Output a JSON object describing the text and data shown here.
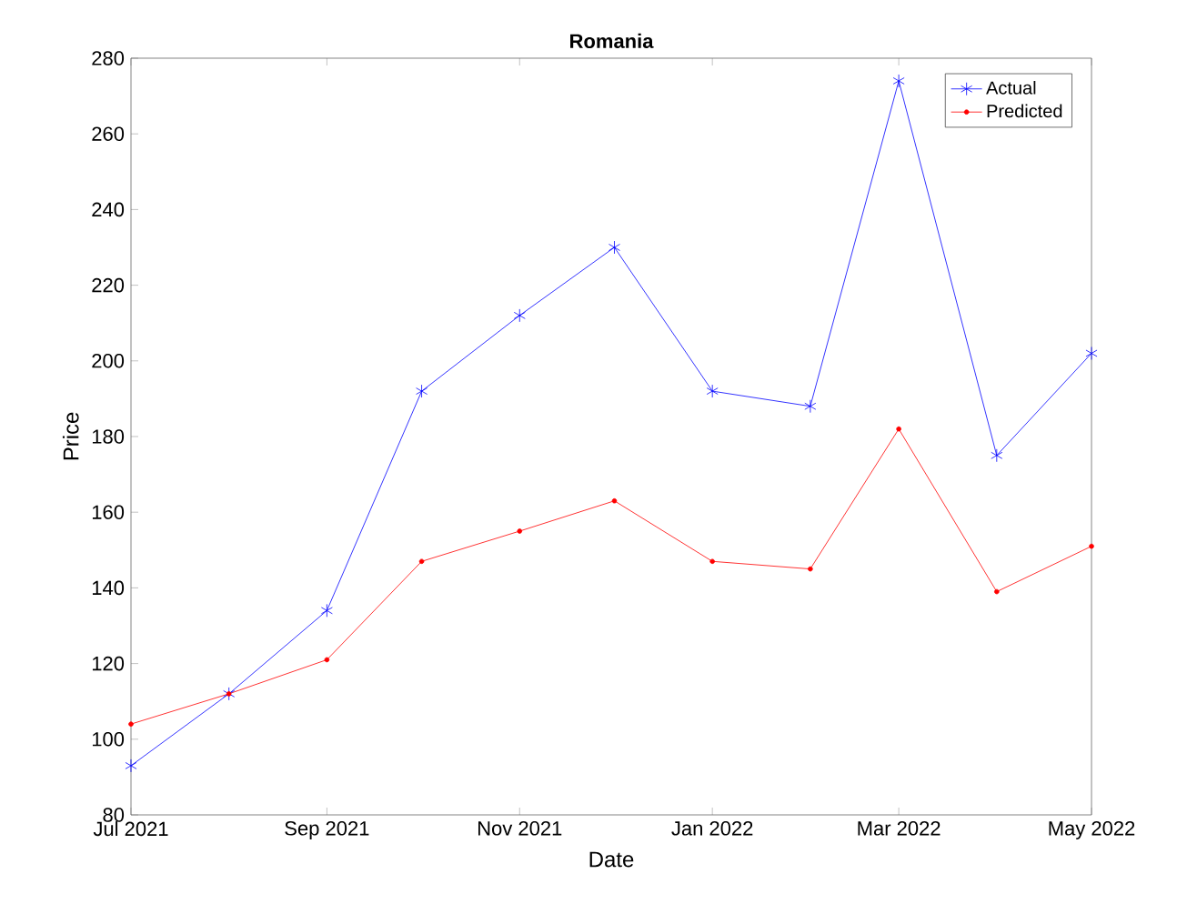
{
  "chart_data": {
    "type": "line",
    "title": "Romania",
    "xlabel": "Date",
    "ylabel": "Price",
    "x": [
      "2021-07",
      "2021-08",
      "2021-09",
      "2021-10",
      "2021-11",
      "2021-12",
      "2022-01",
      "2022-02",
      "2022-03",
      "2022-04",
      "2022-05"
    ],
    "series": [
      {
        "name": "Actual",
        "color": "#0000ff",
        "marker": "cross",
        "values": [
          93,
          112,
          134,
          192,
          212,
          230,
          192,
          188,
          274,
          175,
          202
        ]
      },
      {
        "name": "Predicted",
        "color": "#ff0000",
        "marker": "circle",
        "values": [
          104,
          112,
          121,
          147,
          155,
          163,
          147,
          145,
          182,
          139,
          151
        ]
      }
    ],
    "xlim": [
      "2021-07",
      "2022-05"
    ],
    "xticks": [
      {
        "value": "2021-07",
        "label": "Jul 2021"
      },
      {
        "value": "2021-09",
        "label": "Sep 2021"
      },
      {
        "value": "2021-11",
        "label": "Nov 2021"
      },
      {
        "value": "2022-01",
        "label": "Jan 2022"
      },
      {
        "value": "2022-03",
        "label": "Mar 2022"
      },
      {
        "value": "2022-05",
        "label": "May 2022"
      }
    ],
    "ylim": [
      80,
      280
    ],
    "yticks": [
      80,
      100,
      120,
      140,
      160,
      180,
      200,
      220,
      240,
      260,
      280
    ],
    "grid": false,
    "legend": "top right",
    "line_style": "solid"
  }
}
